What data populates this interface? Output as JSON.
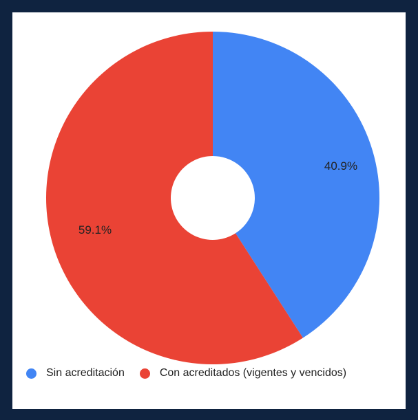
{
  "chart_data": {
    "type": "pie",
    "donut": true,
    "legend_position": "bottom-left",
    "slices": [
      {
        "name": "Sin acreditación",
        "value": 40.9,
        "label": "40.9%",
        "color": "#4285f4"
      },
      {
        "name": "Con acreditados (vigentes y vencidos)",
        "value": 59.1,
        "label": "59.1%",
        "color": "#ea4335"
      }
    ]
  },
  "colors": {
    "frame": "#0f2340",
    "panel": "#ffffff"
  }
}
